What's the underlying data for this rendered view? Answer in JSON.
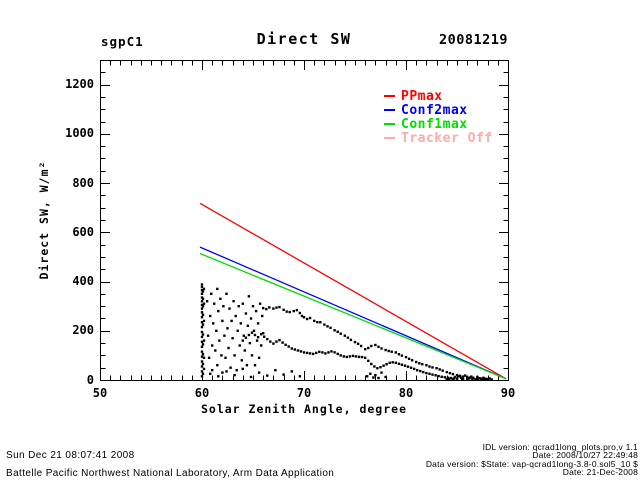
{
  "header": {
    "site": "sgpC1",
    "title": "Direct SW",
    "date": "20081219"
  },
  "footer": {
    "timestamp": "Sun Dec 21 08:07:41 2008",
    "organization": "Battelle Pacific Northwest National Laboratory, Arm Data Application",
    "version_lines": [
      "IDL version: qcrad1long_plots.pro,v 1.1",
      "Date: 2008/10/27 22:49:48",
      "Data version: $State: vap-qcrad1long-3.8-0.sol5_10 $",
      "Date: 21-Dec-2008"
    ]
  },
  "chart_data": {
    "type": "scatter",
    "title": "Direct SW",
    "site": "sgpC1",
    "date": "20081219",
    "xlabel": "Solar Zenith Angle, degree",
    "ylabel": "Direct SW, W/m²",
    "xlim": [
      50,
      90
    ],
    "ylim": [
      0,
      1300
    ],
    "xticks": [
      50,
      60,
      70,
      80,
      90
    ],
    "yticks": [
      0,
      200,
      400,
      600,
      800,
      1000,
      1200
    ],
    "x_minor_step": 1,
    "y_minor_step": 50,
    "grid": false,
    "axis_color": "#000000",
    "background": "#ffffff",
    "legend_position": "upper right",
    "legend": [
      {
        "label": "PPmax",
        "color": "#ff0000"
      },
      {
        "label": "Conf2max",
        "color": "#0000ff"
      },
      {
        "label": "Conf1max",
        "color": "#00dd00"
      },
      {
        "label": "Tracker Off",
        "color": "#ffaaaa"
      }
    ],
    "lines": [
      {
        "name": "PPmax",
        "color": "#ff0000",
        "points": [
          [
            59.8,
            718
          ],
          [
            89.8,
            5
          ]
        ]
      },
      {
        "name": "Conf2max",
        "color": "#0000ff",
        "points": [
          [
            59.8,
            540
          ],
          [
            89.8,
            5
          ]
        ]
      },
      {
        "name": "Conf1max",
        "color": "#00dd00",
        "points": [
          [
            59.8,
            514
          ],
          [
            89.8,
            5
          ]
        ]
      }
    ],
    "scatter": {
      "name": "measured-direct-sw",
      "color": "#000000",
      "marker": "square",
      "points": [
        [
          60,
          15
        ],
        [
          60,
          35
        ],
        [
          60,
          55
        ],
        [
          60,
          75
        ],
        [
          60,
          95
        ],
        [
          60,
          115
        ],
        [
          60,
          135
        ],
        [
          60,
          155
        ],
        [
          60,
          175
        ],
        [
          60,
          195
        ],
        [
          60,
          215
        ],
        [
          60,
          235
        ],
        [
          60,
          255
        ],
        [
          60,
          275
        ],
        [
          60,
          290
        ],
        [
          60,
          305
        ],
        [
          60,
          320
        ],
        [
          60,
          335
        ],
        [
          60,
          350
        ],
        [
          60,
          365
        ],
        [
          60,
          378
        ],
        [
          60,
          388
        ],
        [
          60.1,
          25
        ],
        [
          60.1,
          65
        ],
        [
          60.1,
          105
        ],
        [
          60.1,
          145
        ],
        [
          60.1,
          185
        ],
        [
          60.1,
          225
        ],
        [
          60.1,
          265
        ],
        [
          60.1,
          300
        ],
        [
          60.1,
          330
        ],
        [
          60.1,
          360
        ],
        [
          60.2,
          45
        ],
        [
          60.2,
          90
        ],
        [
          60.2,
          160
        ],
        [
          60.2,
          240
        ],
        [
          60.2,
          310
        ],
        [
          60.2,
          370
        ],
        [
          60.5,
          320
        ],
        [
          60.6,
          180
        ],
        [
          60.7,
          90
        ],
        [
          60.8,
          260
        ],
        [
          60.9,
          350
        ],
        [
          61,
          140
        ],
        [
          61,
          40
        ],
        [
          61.1,
          230
        ],
        [
          61.2,
          310
        ],
        [
          61.3,
          120
        ],
        [
          61.4,
          200
        ],
        [
          61.5,
          370
        ],
        [
          61.5,
          60
        ],
        [
          61.6,
          280
        ],
        [
          61.7,
          160
        ],
        [
          61.8,
          330
        ],
        [
          61.9,
          100
        ],
        [
          62,
          240
        ],
        [
          62,
          30
        ],
        [
          62.1,
          300
        ],
        [
          62.2,
          180
        ],
        [
          62.3,
          90
        ],
        [
          62.4,
          350
        ],
        [
          62.5,
          210
        ],
        [
          62.6,
          130
        ],
        [
          62.7,
          290
        ],
        [
          62.8,
          50
        ],
        [
          62.9,
          240
        ],
        [
          63,
          170
        ],
        [
          63.1,
          320
        ],
        [
          63.2,
          100
        ],
        [
          63.3,
          260
        ],
        [
          63.4,
          40
        ],
        [
          63.5,
          200
        ],
        [
          63.6,
          300
        ],
        [
          63.7,
          140
        ],
        [
          63.8,
          230
        ],
        [
          63.9,
          80
        ],
        [
          64,
          310
        ],
        [
          64.1,
          180
        ],
        [
          64.2,
          120
        ],
        [
          64.3,
          270
        ],
        [
          64.4,
          60
        ],
        [
          64.5,
          220
        ],
        [
          64.6,
          340
        ],
        [
          64.7,
          150
        ],
        [
          64.8,
          250
        ],
        [
          64.9,
          100
        ],
        [
          65,
          300
        ],
        [
          65.1,
          200
        ],
        [
          65.2,
          60
        ],
        [
          65.3,
          280
        ],
        [
          65.4,
          160
        ],
        [
          65.5,
          230
        ],
        [
          65.6,
          90
        ],
        [
          65.7,
          310
        ],
        [
          65.8,
          140
        ],
        [
          65.9,
          260
        ],
        [
          66,
          190
        ],
        [
          60.8,
          25
        ],
        [
          61.6,
          15
        ],
        [
          62.4,
          35
        ],
        [
          63.2,
          20
        ],
        [
          64,
          45
        ],
        [
          64.8,
          12
        ],
        [
          65.6,
          30
        ],
        [
          66.4,
          18
        ],
        [
          67.2,
          40
        ],
        [
          68,
          22
        ],
        [
          68.8,
          35
        ],
        [
          69.6,
          15
        ],
        [
          76.2,
          15
        ],
        [
          76.5,
          25
        ],
        [
          76.8,
          10
        ],
        [
          77,
          20
        ],
        [
          77.3,
          8
        ],
        [
          77.6,
          30
        ],
        [
          78,
          12
        ],
        [
          66,
          292
        ],
        [
          66.3,
          288
        ],
        [
          66.6,
          295
        ],
        [
          67,
          290
        ],
        [
          67.3,
          294
        ],
        [
          67.6,
          296
        ],
        [
          68,
          285
        ],
        [
          68.3,
          278
        ],
        [
          68.6,
          276
        ],
        [
          69,
          280
        ],
        [
          69.3,
          284
        ],
        [
          69.6,
          272
        ],
        [
          69.8,
          260
        ],
        [
          70,
          255
        ],
        [
          70.3,
          248
        ],
        [
          70.6,
          252
        ],
        [
          71,
          240
        ],
        [
          71.3,
          235
        ],
        [
          71.6,
          235
        ],
        [
          72,
          225
        ],
        [
          72.3,
          218
        ],
        [
          72.6,
          212
        ],
        [
          73,
          202
        ],
        [
          73.3,
          196
        ],
        [
          73.6,
          188
        ],
        [
          74,
          180
        ],
        [
          74.3,
          172
        ],
        [
          74.6,
          163
        ],
        [
          75,
          154
        ],
        [
          75.3,
          147
        ],
        [
          75.6,
          138
        ],
        [
          76,
          125
        ],
        [
          76.3,
          130
        ],
        [
          76.6,
          138
        ],
        [
          77,
          142
        ],
        [
          77.3,
          135
        ],
        [
          77.6,
          128
        ],
        [
          78,
          122
        ],
        [
          78.3,
          118
        ],
        [
          78.6,
          115
        ],
        [
          79,
          112
        ],
        [
          79.3,
          105
        ],
        [
          79.6,
          99
        ],
        [
          80,
          93
        ],
        [
          80.3,
          86
        ],
        [
          80.6,
          80
        ],
        [
          81,
          73
        ],
        [
          81.3,
          68
        ],
        [
          81.6,
          64
        ],
        [
          82,
          60
        ],
        [
          82.3,
          55
        ],
        [
          82.6,
          51
        ],
        [
          83,
          48
        ],
        [
          83.3,
          43
        ],
        [
          83.6,
          38
        ],
        [
          84,
          32
        ],
        [
          84.3,
          28
        ],
        [
          84.6,
          24
        ],
        [
          85,
          20
        ],
        [
          85.3,
          17
        ],
        [
          85.6,
          14
        ],
        [
          86,
          12
        ],
        [
          86.3,
          10
        ],
        [
          86.6,
          9
        ],
        [
          87,
          7
        ],
        [
          87.3,
          6
        ],
        [
          87.6,
          5
        ],
        [
          88,
          4
        ],
        [
          64,
          160
        ],
        [
          64.3,
          172
        ],
        [
          64.6,
          183
        ],
        [
          64.9,
          192
        ],
        [
          65.2,
          183
        ],
        [
          65.5,
          174
        ],
        [
          65.8,
          186
        ],
        [
          66.1,
          176
        ],
        [
          66.4,
          166
        ],
        [
          66.7,
          156
        ],
        [
          67,
          148
        ],
        [
          67.3,
          156
        ],
        [
          67.6,
          162
        ],
        [
          67.9,
          152
        ],
        [
          68.2,
          143
        ],
        [
          68.5,
          136
        ],
        [
          68.8,
          128
        ],
        [
          69.1,
          124
        ],
        [
          69.4,
          120
        ],
        [
          69.7,
          116
        ],
        [
          70,
          112
        ],
        [
          70.3,
          110
        ],
        [
          70.6,
          108
        ],
        [
          70.9,
          106
        ],
        [
          71.2,
          110
        ],
        [
          71.5,
          114
        ],
        [
          71.8,
          112
        ],
        [
          72.1,
          108
        ],
        [
          72.4,
          112
        ],
        [
          72.7,
          116
        ],
        [
          73,
          112
        ],
        [
          73.3,
          106
        ],
        [
          73.6,
          100
        ],
        [
          73.9,
          96
        ],
        [
          74.2,
          94
        ],
        [
          74.5,
          96
        ],
        [
          74.8,
          98
        ],
        [
          75.1,
          96
        ],
        [
          75.4,
          94
        ],
        [
          75.7,
          93
        ],
        [
          76,
          90
        ],
        [
          76.3,
          78
        ],
        [
          76.6,
          65
        ],
        [
          76.9,
          55
        ],
        [
          77.2,
          48
        ],
        [
          77.5,
          52
        ],
        [
          77.8,
          58
        ],
        [
          78.1,
          64
        ],
        [
          78.4,
          70
        ],
        [
          78.7,
          72
        ],
        [
          79,
          70
        ],
        [
          79.3,
          66
        ],
        [
          79.6,
          62
        ],
        [
          79.9,
          58
        ],
        [
          80.2,
          54
        ],
        [
          80.5,
          50
        ],
        [
          80.8,
          45
        ],
        [
          81.1,
          40
        ],
        [
          81.4,
          36
        ],
        [
          81.7,
          32
        ],
        [
          82,
          28
        ],
        [
          82.3,
          25
        ],
        [
          82.6,
          22
        ],
        [
          82.9,
          19
        ],
        [
          83.2,
          16
        ],
        [
          83.5,
          13
        ],
        [
          83.8,
          11
        ],
        [
          84.1,
          9
        ],
        [
          84.4,
          7
        ],
        [
          84.7,
          6
        ],
        [
          85,
          5
        ],
        [
          85.5,
          4
        ],
        [
          86,
          3
        ],
        [
          86.5,
          2
        ],
        [
          87,
          2
        ],
        [
          87.5,
          1
        ],
        [
          88,
          1
        ],
        [
          84,
          2
        ],
        [
          84.2,
          5
        ],
        [
          84.4,
          8
        ],
        [
          84.6,
          3
        ],
        [
          84.8,
          12
        ],
        [
          85,
          6
        ],
        [
          85.2,
          15
        ],
        [
          85.4,
          9
        ],
        [
          85.6,
          4
        ],
        [
          85.8,
          18
        ],
        [
          86,
          10
        ],
        [
          86.2,
          6
        ],
        [
          86.4,
          14
        ],
        [
          86.6,
          8
        ],
        [
          86.8,
          3
        ],
        [
          87,
          12
        ],
        [
          87.2,
          7
        ],
        [
          87.4,
          4
        ],
        [
          87.6,
          9
        ],
        [
          87.8,
          5
        ],
        [
          88,
          3
        ],
        [
          88.2,
          6
        ],
        [
          88.4,
          2
        ]
      ]
    }
  }
}
